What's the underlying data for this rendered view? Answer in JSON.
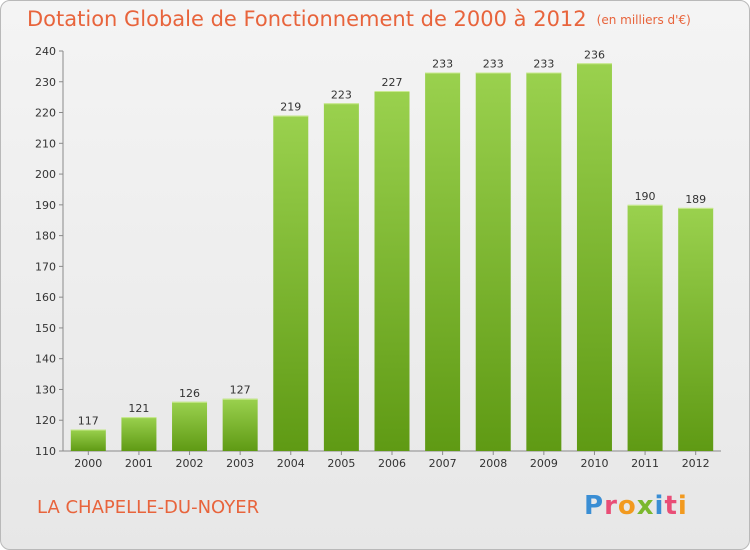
{
  "chart_data": {
    "type": "bar",
    "title": "Dotation Globale de Fonctionnement de 2000 à 2012",
    "unit_label": "(en milliers d'€)",
    "categories": [
      "2000",
      "2001",
      "2002",
      "2003",
      "2004",
      "2005",
      "2006",
      "2007",
      "2008",
      "2009",
      "2010",
      "2011",
      "2012"
    ],
    "values": [
      117,
      121,
      126,
      127,
      219,
      223,
      227,
      233,
      233,
      233,
      236,
      190,
      189
    ],
    "ylim": [
      110,
      240
    ],
    "yticks": [
      110,
      120,
      130,
      140,
      150,
      160,
      170,
      180,
      190,
      200,
      210,
      220,
      230,
      240
    ],
    "xlabel": "",
    "ylabel": "",
    "grid": false
  },
  "footer": {
    "commune": "LA CHAPELLE-DU-NOYER",
    "logo_text": "Proxiti"
  },
  "colors": {
    "bar_light": "#9ad14e",
    "bar_dark": "#5f9a14",
    "title": "#e8643c"
  }
}
